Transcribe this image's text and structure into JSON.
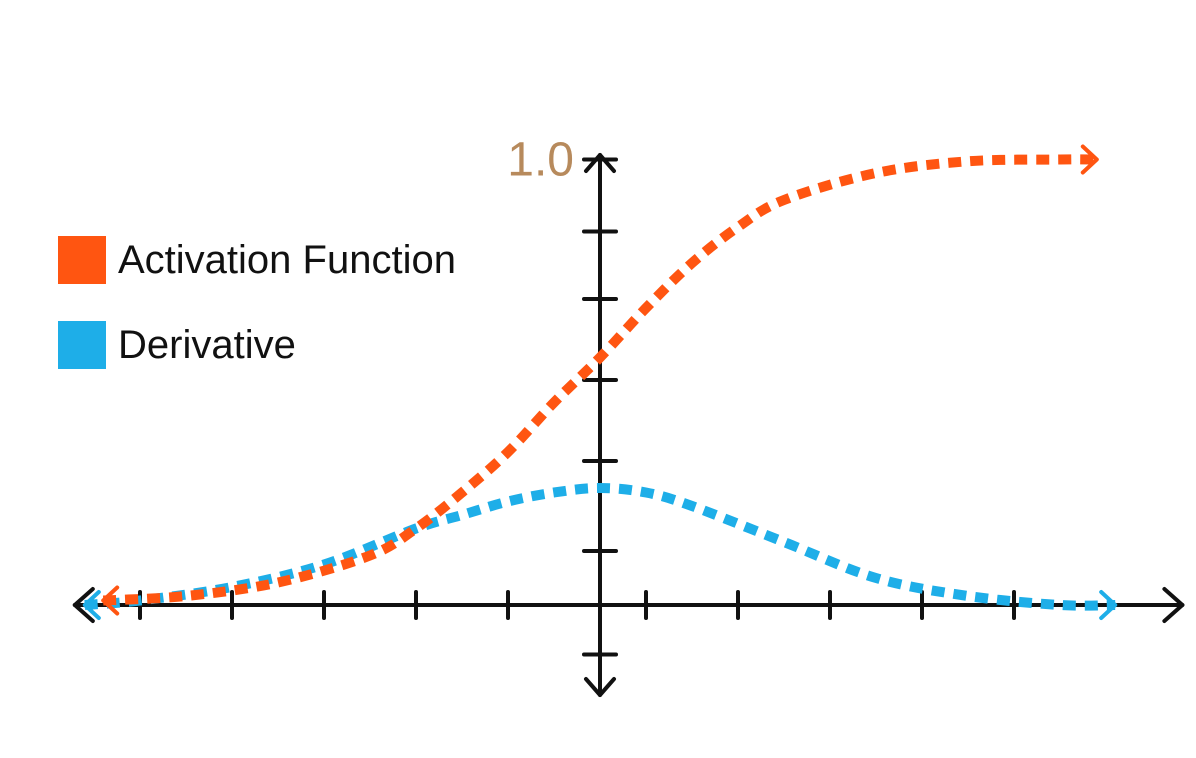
{
  "chart_data": {
    "type": "line",
    "title": "",
    "xlabel": "",
    "ylabel": "",
    "xlim": [
      -5.6,
      6.2
    ],
    "ylim": [
      -1,
      5
    ],
    "grid": false,
    "legend_placement": "left",
    "y_tick_label": {
      "value": 1.0,
      "text": "1.0",
      "color": "#b78a5c"
    },
    "x_ticks": [
      -5,
      -4,
      -3,
      -2,
      -1,
      0.5,
      1.5,
      2.5,
      3.5,
      4.5
    ],
    "y_ticks": [
      -0.55,
      0.6,
      1.6,
      2.5,
      3.4,
      4.15,
      4.95
    ],
    "series": [
      {
        "name": "Activation Function",
        "color": "#ff5511",
        "x": [
          -5.4,
          -4.5,
          -3.5,
          -2.5,
          -2.0,
          -1.5,
          -1.0,
          -0.5,
          0.0,
          0.5,
          1.0,
          1.5,
          2.0,
          3.0,
          4.0,
          5.0,
          5.4
        ],
        "y": [
          0.05,
          0.1,
          0.25,
          0.55,
          0.85,
          1.25,
          1.7,
          2.25,
          2.75,
          3.3,
          3.8,
          4.2,
          4.5,
          4.8,
          4.93,
          4.95,
          4.95
        ]
      },
      {
        "name": "Derivative",
        "color": "#1eaee8",
        "x": [
          -5.6,
          -5.0,
          -4.0,
          -3.0,
          -2.0,
          -1.5,
          -1.0,
          -0.5,
          0.0,
          0.5,
          1.0,
          2.0,
          3.0,
          4.0,
          5.0,
          5.6
        ],
        "y": [
          0.0,
          0.05,
          0.2,
          0.45,
          0.85,
          1.0,
          1.15,
          1.25,
          1.3,
          1.25,
          1.1,
          0.7,
          0.3,
          0.1,
          0.0,
          0.0
        ]
      }
    ]
  }
}
